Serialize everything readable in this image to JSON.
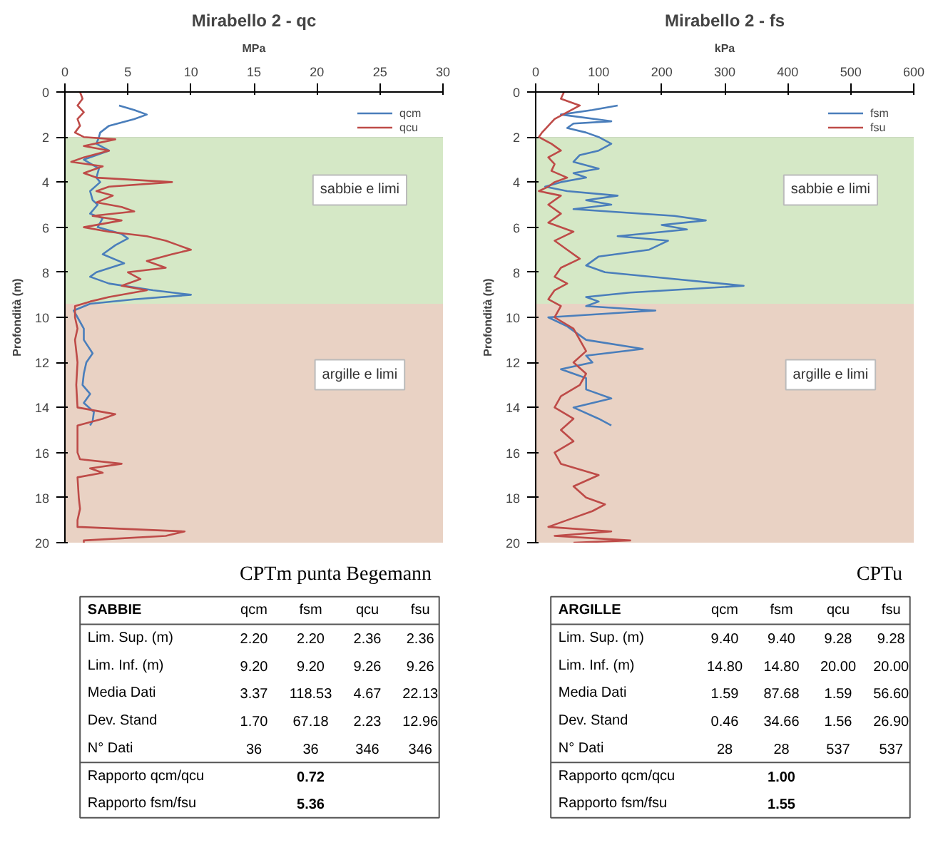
{
  "chart_data": [
    {
      "type": "line",
      "title": "Mirabello 2 - qc",
      "xlabel": "MPa",
      "ylabel": "Profondità (m)",
      "orientation": "horizontal",
      "xlim": [
        0,
        30
      ],
      "xticks": [
        0,
        5,
        10,
        15,
        20,
        25,
        30
      ],
      "ylim": [
        20,
        0
      ],
      "yticks": [
        0,
        2,
        4,
        6,
        8,
        10,
        12,
        14,
        16,
        18,
        20
      ],
      "grid": "y",
      "legend": "top right",
      "bands": [
        {
          "axis": "y",
          "from": 2,
          "to": 9.4,
          "label": "sabbie e limi",
          "color": "#d5e8c6"
        },
        {
          "axis": "y",
          "from": 9.4,
          "to": 20,
          "label": "argille e limi",
          "color": "#e9d2c4"
        }
      ],
      "series": [
        {
          "name": "qcm",
          "color": "#4a7ebb",
          "x": [
            0.6,
            0.8,
            1.0,
            1.2,
            1.5,
            1.8,
            2.0,
            2.3,
            2.6,
            3.0,
            3.4,
            3.8,
            4.0,
            4.4,
            4.8,
            5.0,
            5.4,
            5.6,
            6.0,
            6.3,
            6.5,
            6.8,
            7.2,
            7.6,
            8.0,
            8.2,
            8.5,
            8.8,
            9.0,
            9.2,
            9.4,
            9.7,
            10.0,
            10.5,
            11.0,
            11.6,
            12.0,
            12.5,
            13.0,
            13.4,
            13.8,
            14.2,
            14.6,
            14.8
          ],
          "values": [
            4.3,
            5.5,
            6.5,
            5.5,
            3.5,
            2.8,
            2.7,
            2.5,
            3.5,
            1.5,
            2.7,
            2.5,
            2.8,
            2.0,
            2.2,
            2.6,
            2.0,
            3.0,
            2.6,
            4.5,
            5.0,
            4.0,
            3.0,
            4.7,
            2.5,
            2.0,
            3.5,
            7.0,
            10.0,
            5.5,
            2.0,
            0.7,
            1.0,
            1.5,
            1.5,
            2.2,
            1.7,
            1.5,
            1.4,
            2.0,
            1.5,
            2.3,
            2.2,
            2.0
          ]
        },
        {
          "name": "qcu",
          "color": "#be4b48",
          "x": [
            0,
            0.3,
            0.6,
            0.9,
            1.2,
            1.5,
            1.8,
            2.0,
            2.1,
            2.4,
            2.6,
            2.9,
            3.1,
            3.3,
            3.6,
            3.8,
            4.0,
            4.2,
            4.4,
            4.6,
            4.9,
            5.1,
            5.3,
            5.5,
            5.7,
            6.0,
            6.2,
            6.4,
            6.6,
            6.8,
            7.0,
            7.2,
            7.5,
            7.8,
            8.0,
            8.3,
            8.6,
            8.8,
            9.1,
            9.3,
            9.5,
            10.0,
            10.5,
            11.0,
            12.0,
            13.0,
            14.0,
            14.3,
            14.5,
            14.8,
            15.5,
            16.0,
            16.3,
            16.5,
            16.7,
            16.9,
            17.1,
            18.0,
            18.5,
            19.0,
            19.3,
            19.5,
            19.7,
            19.9,
            20.0
          ],
          "values": [
            1.2,
            1.4,
            1.0,
            1.5,
            1.0,
            1.2,
            0.8,
            1.5,
            4.0,
            1.5,
            3.5,
            1.5,
            0.5,
            3.0,
            1.5,
            2.5,
            8.5,
            3.5,
            2.5,
            3.8,
            2.5,
            4.5,
            5.5,
            2.2,
            4.5,
            1.5,
            3.5,
            6.5,
            8.0,
            9.0,
            10.0,
            8.5,
            6.5,
            8.0,
            5.0,
            6.0,
            4.5,
            6.5,
            3.5,
            2.0,
            0.8,
            0.8,
            1.0,
            0.8,
            1.0,
            0.9,
            1.0,
            4.0,
            3.0,
            1.0,
            1.0,
            1.0,
            1.2,
            4.5,
            2.0,
            3.0,
            1.0,
            1.1,
            1.2,
            1.0,
            1.0,
            9.5,
            8.0,
            1.5,
            1.5
          ]
        }
      ]
    },
    {
      "type": "line",
      "title": "Mirabello 2 - fs",
      "xlabel": "kPa",
      "ylabel": "Profondità (m)",
      "orientation": "horizontal",
      "xlim": [
        0,
        600
      ],
      "xticks": [
        0,
        100,
        200,
        300,
        400,
        500,
        600
      ],
      "ylim": [
        20,
        0
      ],
      "yticks": [
        0,
        2,
        4,
        6,
        8,
        10,
        12,
        14,
        16,
        18,
        20
      ],
      "grid": "y",
      "legend": "top right",
      "bands": [
        {
          "axis": "y",
          "from": 2,
          "to": 9.4,
          "label": "sabbie e limi",
          "color": "#d5e8c6"
        },
        {
          "axis": "y",
          "from": 9.4,
          "to": 20,
          "label": "argille e limi",
          "color": "#e9d2c4"
        }
      ],
      "series": [
        {
          "name": "fsm",
          "color": "#4a7ebb",
          "x": [
            0.6,
            0.8,
            1.0,
            1.3,
            1.4,
            1.6,
            1.8,
            2.0,
            2.3,
            2.6,
            2.8,
            3.1,
            3.4,
            3.6,
            3.8,
            4.0,
            4.2,
            4.4,
            4.6,
            4.8,
            5.0,
            5.2,
            5.5,
            5.7,
            5.9,
            6.1,
            6.4,
            6.6,
            7.0,
            7.3,
            7.7,
            8.0,
            8.3,
            8.6,
            8.9,
            9.1,
            9.3,
            9.5,
            9.7,
            10.0,
            10.4,
            11.0,
            11.4,
            11.7,
            12.0,
            12.3,
            12.7,
            13.2,
            13.6,
            14.0,
            14.5,
            14.8
          ],
          "values": [
            130,
            90,
            40,
            120,
            60,
            50,
            80,
            100,
            120,
            100,
            70,
            60,
            100,
            60,
            80,
            40,
            15,
            50,
            130,
            80,
            120,
            60,
            220,
            270,
            200,
            240,
            130,
            210,
            180,
            100,
            80,
            110,
            220,
            330,
            150,
            80,
            100,
            80,
            190,
            20,
            50,
            80,
            170,
            80,
            90,
            40,
            80,
            80,
            120,
            60,
            100,
            120
          ]
        },
        {
          "name": "fsu",
          "color": "#be4b48",
          "x": [
            0,
            0.3,
            0.6,
            0.9,
            1.2,
            1.5,
            1.8,
            2.0,
            2.3,
            2.6,
            2.9,
            3.2,
            3.5,
            3.8,
            4.0,
            4.2,
            4.4,
            4.6,
            5.0,
            5.4,
            5.8,
            6.2,
            6.6,
            7.0,
            7.4,
            7.8,
            8.2,
            8.5,
            8.8,
            9.2,
            9.5,
            10.0,
            10.5,
            11.0,
            11.5,
            12.0,
            12.5,
            13.0,
            13.5,
            14.0,
            14.5,
            15.0,
            15.5,
            16.0,
            16.5,
            17.0,
            17.5,
            18.0,
            18.3,
            18.6,
            19.0,
            19.3,
            19.5,
            19.7,
            19.9,
            20.0
          ],
          "values": [
            45,
            40,
            70,
            50,
            30,
            20,
            10,
            5,
            25,
            40,
            20,
            30,
            25,
            50,
            30,
            20,
            5,
            40,
            20,
            40,
            20,
            60,
            30,
            50,
            70,
            40,
            30,
            50,
            30,
            20,
            40,
            30,
            60,
            70,
            80,
            60,
            80,
            70,
            40,
            30,
            60,
            40,
            60,
            30,
            40,
            100,
            60,
            80,
            110,
            90,
            50,
            20,
            120,
            30,
            150,
            60
          ]
        }
      ]
    },
    {
      "type": "other",
      "title": "CPTm punta Begemann",
      "subtitle": "SABBIE",
      "categories": [
        "qcm",
        "fsm",
        "qcu",
        "fsu"
      ],
      "y_categories": [
        "Lim. Sup. (m)",
        "Lim. Inf. (m)",
        "Media Dati",
        "Dev. Stand",
        "N° Dati",
        "Rapporto qcm/qcu",
        "Rapporto fsm/fsu"
      ],
      "cell_labels": [
        [
          "2.20",
          "2.20",
          "2.36",
          "2.36"
        ],
        [
          "9.20",
          "9.20",
          "9.26",
          "9.26"
        ],
        [
          "3.37",
          "118.53",
          "4.67",
          "22.13"
        ],
        [
          "1.70",
          "67.18",
          "2.23",
          "12.96"
        ],
        [
          "36",
          "36",
          "346",
          "346"
        ],
        [
          null,
          "0.72",
          null,
          null
        ],
        [
          null,
          "5.36",
          null,
          null
        ]
      ]
    },
    {
      "type": "other",
      "title": "CPTu",
      "subtitle": "ARGILLE",
      "categories": [
        "qcm",
        "fsm",
        "qcu",
        "fsu"
      ],
      "y_categories": [
        "Lim. Sup. (m)",
        "Lim. Inf. (m)",
        "Media Dati",
        "Dev. Stand",
        "N° Dati",
        "Rapporto qcm/qcu",
        "Rapporto fsm/fsu"
      ],
      "cell_labels": [
        [
          "9.40",
          "9.40",
          "9.28",
          "9.28"
        ],
        [
          "14.80",
          "14.80",
          "20.00",
          "20.00"
        ],
        [
          "1.59",
          "87.68",
          "1.59",
          "56.60"
        ],
        [
          "0.46",
          "34.66",
          "1.56",
          "26.90"
        ],
        [
          "28",
          "28",
          "537",
          "537"
        ],
        [
          null,
          "1.00",
          null,
          null
        ],
        [
          null,
          "1.55",
          null,
          null
        ]
      ]
    }
  ]
}
